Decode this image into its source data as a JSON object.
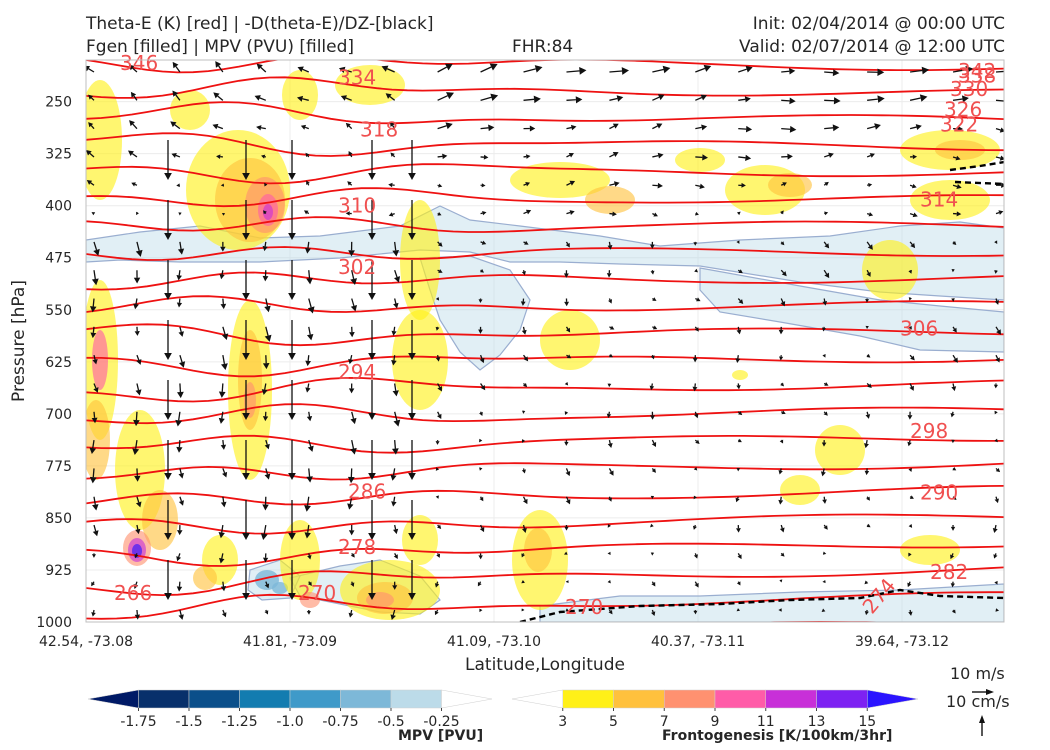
{
  "header": {
    "line1_left": "Theta-E (K) [red] | -D(theta-E)/DZ-[black]",
    "line2_left": "Fgen [filled] | MPV (PVU) [filled]",
    "fhr": "FHR:84",
    "init": "Init: 02/04/2014 @ 00:00 UTC",
    "valid": "Valid: 02/07/2014 @ 12:00 UTC"
  },
  "chart_data": {
    "type": "cross-section",
    "xlabel": "Latitude,Longitude",
    "ylabel": "Pressure [hPa]",
    "x_ticks": [
      "42.54, -73.08",
      "41.81, -73.09",
      "41.09, -73.10",
      "40.37, -73.11",
      "39.64, -73.12"
    ],
    "y_ticks": [
      250,
      325,
      400,
      475,
      550,
      625,
      700,
      775,
      850,
      925,
      1000
    ],
    "ylim": [
      1000,
      190
    ],
    "theta_e_labels": {
      "left": [
        "346",
        "334",
        "318",
        "310",
        "302",
        "294",
        "286",
        "278",
        "270",
        "266"
      ],
      "right": [
        "342",
        "338",
        "330",
        "326",
        "322",
        "314",
        "306",
        "298",
        "290",
        "282",
        "274"
      ],
      "bottom": [
        "270"
      ]
    },
    "theta_e_label_values": {
      "left": [
        346,
        334,
        318,
        310,
        302,
        294,
        286,
        278,
        270,
        266
      ],
      "left_pressure": [
        190,
        215,
        290,
        400,
        488,
        640,
        812,
        892,
        965,
        1025
      ],
      "right": [
        342,
        338,
        330,
        326,
        322,
        314,
        306,
        298,
        290,
        282,
        274
      ],
      "right_pressure": [
        204,
        212,
        232,
        261,
        283,
        391,
        577,
        725,
        813,
        928,
        1000
      ]
    },
    "mpv_colorbar": {
      "label": "MPV [PVU]",
      "ticks": [
        "-1.75",
        "-1.5",
        "-1.25",
        "-1.0",
        "-0.75",
        "-0.5",
        "-0.25"
      ],
      "colors": [
        "#001a66",
        "#08306b",
        "#0b4f8a",
        "#137cb0",
        "#3f9ac9",
        "#7db8d8",
        "#bcdbe9",
        "#ffffff"
      ]
    },
    "fgen_colorbar": {
      "label": "Frontogenesis [K/100km/3hr]",
      "ticks": [
        "3",
        "5",
        "7",
        "9",
        "11",
        "13",
        "15"
      ],
      "colors": [
        "#ffffff",
        "#fff018",
        "#ffc13d",
        "#ff9170",
        "#ff5ca8",
        "#c830d8",
        "#7d22f2",
        "#2b14ff"
      ]
    },
    "wind_scale": {
      "horizontal": "10 m/s",
      "vertical": "10 cm/s"
    },
    "grid": true
  }
}
